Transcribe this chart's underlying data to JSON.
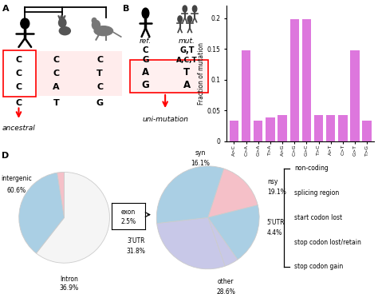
{
  "bar_categories": [
    "A>C",
    "C>A",
    "G>A",
    "T>A",
    "A>G",
    "C>G",
    "G>C",
    "T>C",
    "A>T",
    "C>T",
    "G>T",
    "T>G"
  ],
  "bar_values": [
    0.033,
    0.148,
    0.033,
    0.038,
    0.042,
    0.198,
    0.198,
    0.042,
    0.042,
    0.042,
    0.148,
    0.033
  ],
  "bar_color": "#DD77DD",
  "bar_ylabel": "Fraction of mutation",
  "bar_ylim": [
    0,
    0.22
  ],
  "bar_yticks": [
    0,
    0.05,
    0.1,
    0.15,
    0.2
  ],
  "pie1_values": [
    60.6,
    36.9,
    2.5
  ],
  "pie1_colors": [
    "#F5F5F5",
    "#AACFE4",
    "#F5C0C8"
  ],
  "pie2_values": [
    16.1,
    19.1,
    4.4,
    28.6,
    31.8
  ],
  "pie2_colors": [
    "#F5C0C8",
    "#AACFE4",
    "#C8C8E8",
    "#C8C8E8",
    "#AACFE4"
  ],
  "legend_items": [
    "non-coding",
    "splicing region",
    "start codon lost",
    "stop codon lost/retain",
    "stop codon gain"
  ],
  "pink_bg": "#FFECEC",
  "red_box": "#FF0000",
  "tree_color": "#000000"
}
